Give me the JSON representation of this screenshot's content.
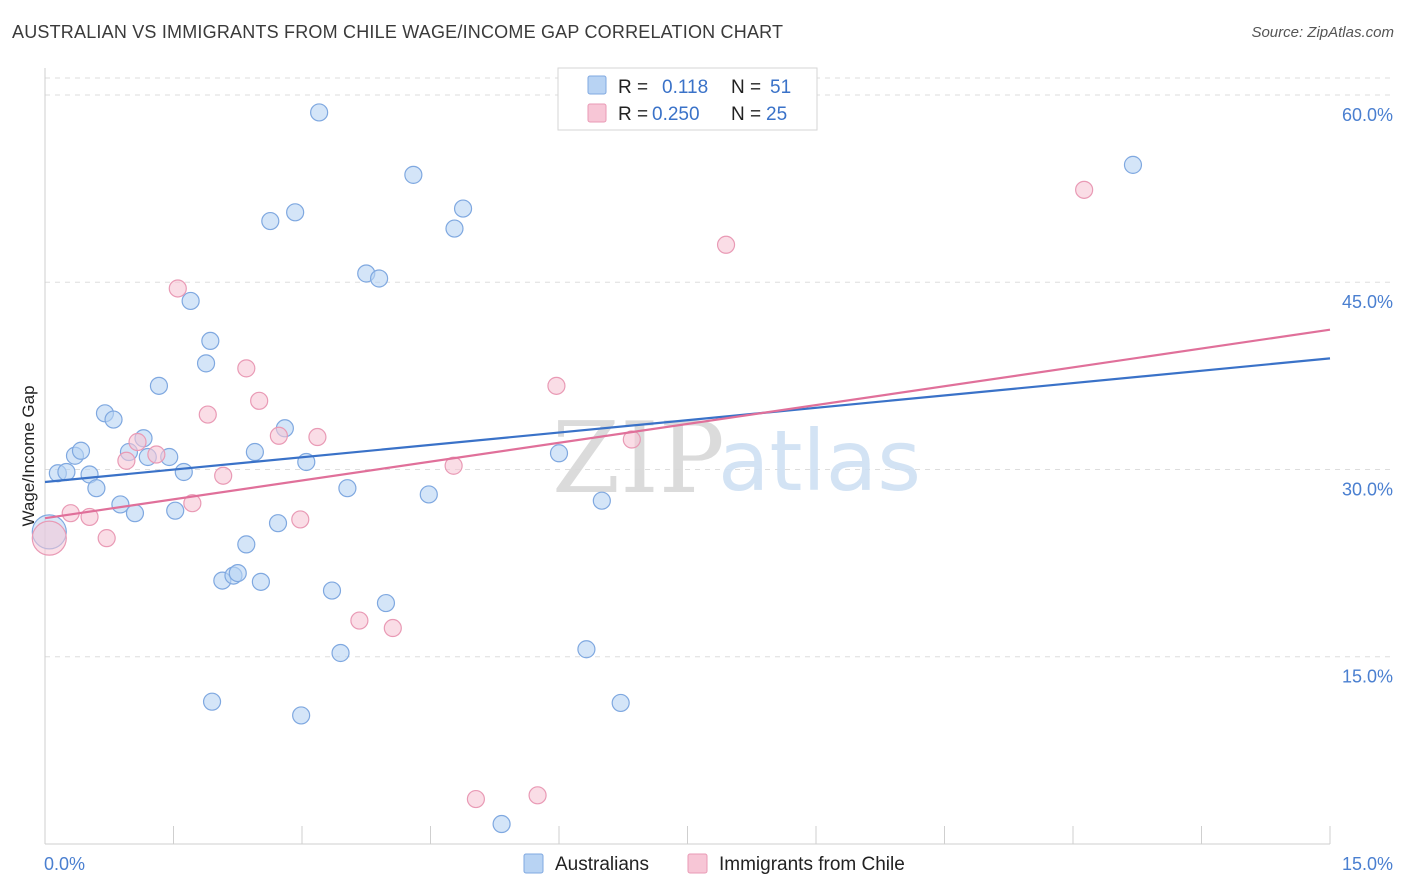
{
  "title": "AUSTRALIAN VS IMMIGRANTS FROM CHILE WAGE/INCOME GAP CORRELATION CHART",
  "source": "Source: ZipAtlas.com",
  "colors": {
    "blue_fill": "#b8d3f3",
    "blue_stroke": "#7fa8e0",
    "blue_line": "#3a72c8",
    "pink_fill": "#f7c6d6",
    "pink_stroke": "#e99ab5",
    "pink_line": "#e0709a",
    "grid": "#dddddd",
    "tick_text": "#4a7fd0"
  },
  "legend": {
    "rows": [
      {
        "r_label": "R =",
        "r_value": "0.118",
        "n_label": "N =",
        "n_value": "51"
      },
      {
        "r_label": "R =",
        "r_value": "0.250",
        "n_label": "N =",
        "n_value": "25"
      }
    ]
  },
  "bottom_legend": [
    "Australians",
    "Immigrants from Chile"
  ],
  "watermark": {
    "zip": "ZIP",
    "atlas": "atlas"
  },
  "chart_data": {
    "type": "scatter",
    "ylabel": "Wage/Income Gap",
    "xlabel": "",
    "xlim": [
      0,
      15
    ],
    "ylim": [
      0,
      62
    ],
    "x_tick_labels": [
      "0.0%",
      "15.0%"
    ],
    "y_ticks": [
      15,
      30,
      45,
      60
    ],
    "y_tick_labels": [
      "15.0%",
      "30.0%",
      "45.0%",
      "60.0%"
    ],
    "grid": true,
    "legend_position": "top-center",
    "series": [
      {
        "name": "Australians",
        "trend": {
          "x": [
            0,
            15
          ],
          "y": [
            29.0,
            38.9
          ]
        },
        "points": [
          {
            "x": 0.05,
            "y": 25.0,
            "big": true
          },
          {
            "x": 0.15,
            "y": 29.7
          },
          {
            "x": 0.25,
            "y": 29.8
          },
          {
            "x": 0.35,
            "y": 31.1
          },
          {
            "x": 0.42,
            "y": 31.5
          },
          {
            "x": 0.52,
            "y": 29.6
          },
          {
            "x": 0.6,
            "y": 28.5
          },
          {
            "x": 0.7,
            "y": 34.5
          },
          {
            "x": 0.8,
            "y": 34.0
          },
          {
            "x": 0.88,
            "y": 27.2
          },
          {
            "x": 1.05,
            "y": 26.5
          },
          {
            "x": 0.98,
            "y": 31.4
          },
          {
            "x": 1.15,
            "y": 32.5
          },
          {
            "x": 1.2,
            "y": 31.0
          },
          {
            "x": 1.33,
            "y": 36.7
          },
          {
            "x": 1.45,
            "y": 31.0
          },
          {
            "x": 1.52,
            "y": 26.7
          },
          {
            "x": 1.62,
            "y": 29.8
          },
          {
            "x": 1.7,
            "y": 43.5
          },
          {
            "x": 1.88,
            "y": 38.5
          },
          {
            "x": 1.93,
            "y": 40.3
          },
          {
            "x": 1.95,
            "y": 11.4
          },
          {
            "x": 2.07,
            "y": 21.1
          },
          {
            "x": 2.2,
            "y": 21.5
          },
          {
            "x": 2.25,
            "y": 21.7
          },
          {
            "x": 2.35,
            "y": 24.0
          },
          {
            "x": 2.45,
            "y": 31.4
          },
          {
            "x": 2.52,
            "y": 21.0
          },
          {
            "x": 2.63,
            "y": 49.9
          },
          {
            "x": 2.72,
            "y": 25.7
          },
          {
            "x": 2.8,
            "y": 33.3
          },
          {
            "x": 2.92,
            "y": 50.6
          },
          {
            "x": 2.99,
            "y": 10.3
          },
          {
            "x": 3.05,
            "y": 30.6
          },
          {
            "x": 3.2,
            "y": 58.6
          },
          {
            "x": 3.35,
            "y": 20.3
          },
          {
            "x": 3.45,
            "y": 15.3
          },
          {
            "x": 3.53,
            "y": 28.5
          },
          {
            "x": 3.75,
            "y": 45.7
          },
          {
            "x": 3.9,
            "y": 45.3
          },
          {
            "x": 3.98,
            "y": 19.3
          },
          {
            "x": 4.3,
            "y": 53.6
          },
          {
            "x": 4.48,
            "y": 28.0
          },
          {
            "x": 4.78,
            "y": 49.3
          },
          {
            "x": 4.88,
            "y": 50.9
          },
          {
            "x": 5.33,
            "y": 1.6
          },
          {
            "x": 6.0,
            "y": 31.3
          },
          {
            "x": 6.32,
            "y": 15.6
          },
          {
            "x": 6.5,
            "y": 27.5
          },
          {
            "x": 6.72,
            "y": 11.3
          },
          {
            "x": 12.7,
            "y": 54.4
          }
        ]
      },
      {
        "name": "Immigrants from Chile",
        "trend": {
          "x": [
            0,
            15
          ],
          "y": [
            26.1,
            41.2
          ]
        },
        "points": [
          {
            "x": 0.05,
            "y": 24.5,
            "big": true
          },
          {
            "x": 0.3,
            "y": 26.5
          },
          {
            "x": 0.52,
            "y": 26.2
          },
          {
            "x": 0.72,
            "y": 24.5
          },
          {
            "x": 0.95,
            "y": 30.7
          },
          {
            "x": 1.08,
            "y": 32.2
          },
          {
            "x": 1.3,
            "y": 31.2
          },
          {
            "x": 1.55,
            "y": 44.5
          },
          {
            "x": 1.72,
            "y": 27.3
          },
          {
            "x": 1.9,
            "y": 34.4
          },
          {
            "x": 2.08,
            "y": 29.5
          },
          {
            "x": 2.35,
            "y": 38.1
          },
          {
            "x": 2.5,
            "y": 35.5
          },
          {
            "x": 2.73,
            "y": 32.7
          },
          {
            "x": 2.98,
            "y": 26.0
          },
          {
            "x": 3.18,
            "y": 32.6
          },
          {
            "x": 3.67,
            "y": 17.9
          },
          {
            "x": 4.06,
            "y": 17.3
          },
          {
            "x": 4.77,
            "y": 30.3
          },
          {
            "x": 5.03,
            "y": 3.6
          },
          {
            "x": 5.75,
            "y": 3.9
          },
          {
            "x": 5.97,
            "y": 36.7
          },
          {
            "x": 6.85,
            "y": 32.4
          },
          {
            "x": 7.95,
            "y": 48.0
          },
          {
            "x": 12.13,
            "y": 52.4
          }
        ]
      }
    ]
  }
}
